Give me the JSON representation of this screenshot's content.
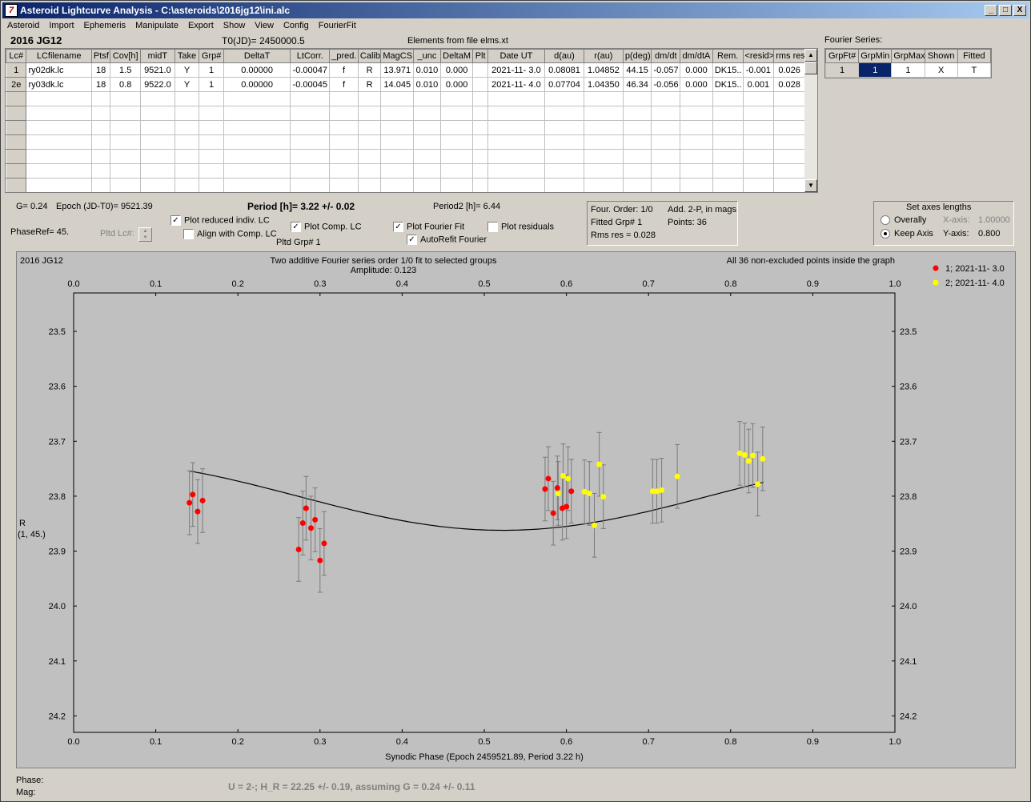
{
  "window": {
    "title": "Asteroid Lightcurve Analysis - C:\\asteroids\\2016jg12\\ini.alc",
    "controls": [
      "_",
      "□",
      "X"
    ]
  },
  "menu": [
    "Asteroid",
    "Import",
    "Ephemeris",
    "Manipulate",
    "Export",
    "Show",
    "View",
    "Config",
    "FourierFit"
  ],
  "header": {
    "asteroid": "2016 JG12",
    "t0": "T0(JD)= 2450000.5",
    "elements": "Elements from file elms.xt"
  },
  "lc_table": {
    "columns": [
      "Lc#",
      "LCfilename",
      "Ptsf",
      "Cov[h]",
      "midT",
      "Take",
      "Grp#",
      "DeltaT",
      "LtCorr.",
      "_pred.",
      "Calib.",
      "MagCS",
      "_unc",
      "DeltaM",
      "Plt",
      "Date UT",
      "d(au)",
      "r(au)",
      "p(deg)",
      "dm/dt",
      "dm/dtA",
      "Rem.",
      "<resid>",
      "rms res"
    ],
    "rows": [
      [
        "1",
        "ry02dk.lc",
        "18",
        "1.5",
        "9521.0",
        "Y",
        "1",
        "0.00000",
        "-0.00047",
        "f",
        "R",
        "13.971",
        "0.010",
        "0.000",
        "",
        "2021-11- 3.0",
        "0.08081",
        "1.04852",
        "44.15",
        "-0.057",
        "0.000",
        "DK15..",
        "-0.001",
        "0.026"
      ],
      [
        "2e",
        "ry03dk.lc",
        "18",
        "0.8",
        "9522.0",
        "Y",
        "1",
        "0.00000",
        "-0.00045",
        "f",
        "R",
        "14.045",
        "0.010",
        "0.000",
        "",
        "2021-11- 4.0",
        "0.07704",
        "1.04350",
        "46.34",
        "-0.056",
        "0.000",
        "DK15..",
        "0.001",
        "0.028"
      ]
    ],
    "empty_rows": 7
  },
  "fourier_series": {
    "title": "Fourier Series:",
    "columns": [
      "GrpFt#",
      "GrpMin",
      "GrpMax",
      "Shown",
      "Fitted"
    ],
    "row": [
      "1",
      "1",
      "1",
      "X",
      "T"
    ]
  },
  "info": {
    "g": "G= 0.24",
    "epoch": "Epoch (JD-T0)= 9521.39",
    "period": "Period [h]= 3.22 +/- 0.02",
    "period2": "Period2 [h]= 6.44",
    "phaseref": "PhaseRef= 45.",
    "pltd_lc": "Pltd Lc#:",
    "pltd_grp": "Pltd Grp#  1"
  },
  "options": {
    "plot_reduced": {
      "label": "Plot reduced indiv. LC",
      "checked": true
    },
    "align_comp": {
      "label": "Align with Comp. LC",
      "checked": false
    },
    "plot_comp": {
      "label": "Plot Comp. LC",
      "checked": true
    },
    "plot_fourier": {
      "label": "Plot Fourier Fit",
      "checked": true
    },
    "autorefit": {
      "label": "AutoRefit Fourier",
      "checked": true
    },
    "plot_residuals": {
      "label": "Plot residuals",
      "checked": false
    }
  },
  "fit_info": {
    "order": "Four. Order:  1/0",
    "add": "Add. 2-P, in mags",
    "fitted": "Fitted Grp# 1",
    "points": "Points: 36",
    "rms": "Rms res     = 0.028"
  },
  "axes": {
    "title": "Set axes lengths",
    "overally": "Overally",
    "keep": "Keep Axis",
    "xaxis_label": "X-axis:",
    "xaxis_value": "1.00000",
    "yaxis_label": "Y-axis:",
    "yaxis_value": "0.800"
  },
  "status": {
    "phase": "Phase:",
    "mag": "Mag:",
    "result": "U = 2-; H_R = 22.25 +/- 0.19, assuming G = 0.24 +/- 0.11"
  },
  "chart_data": {
    "type": "scatter",
    "title": "Two additive Fourier series order 1/0 fit to selected groups",
    "subtitle": "Amplitude: 0.123",
    "corner_left": "2016 JG12",
    "corner_right": "All 36 non-excluded points inside the graph",
    "xlabel": "Synodic Phase (Epoch 2459521.89, Period 3.22 h)",
    "ylabel": [
      "R",
      "(1, 45.)"
    ],
    "xlim": [
      0,
      1
    ],
    "ylim": [
      23.43,
      24.23
    ],
    "xticks": [
      "0.0",
      "0.1",
      "0.2",
      "0.3",
      "0.4",
      "0.5",
      "0.6",
      "0.7",
      "0.8",
      "0.9",
      "1.0"
    ],
    "yticks": [
      "23.5",
      "23.6",
      "23.7",
      "23.8",
      "23.9",
      "24.0",
      "24.1",
      "24.2"
    ],
    "fit_curve": {
      "mean": 23.8,
      "a": -0.0615,
      "b": -0.0089,
      "xrange": [
        0.14,
        0.84
      ]
    },
    "series": [
      {
        "name": "1; 2021-11- 3.0",
        "color": "#ff0000",
        "points": [
          [
            0.141,
            23.812
          ],
          [
            0.145,
            23.797
          ],
          [
            0.151,
            23.828
          ],
          [
            0.157,
            23.808
          ],
          [
            0.274,
            23.897
          ],
          [
            0.279,
            23.849
          ],
          [
            0.283,
            23.822
          ],
          [
            0.289,
            23.858
          ],
          [
            0.294,
            23.843
          ],
          [
            0.3,
            23.917
          ],
          [
            0.305,
            23.886
          ],
          [
            0.574,
            23.787
          ],
          [
            0.578,
            23.768
          ],
          [
            0.584,
            23.831
          ],
          [
            0.589,
            23.785
          ],
          [
            0.595,
            23.822
          ],
          [
            0.6,
            23.819
          ],
          [
            0.606,
            23.791
          ]
        ]
      },
      {
        "name": "2; 2021-11- 4.0",
        "color": "#ffff00",
        "points": [
          [
            0.59,
            23.795
          ],
          [
            0.596,
            23.763
          ],
          [
            0.602,
            23.768
          ],
          [
            0.622,
            23.792
          ],
          [
            0.628,
            23.795
          ],
          [
            0.634,
            23.853
          ],
          [
            0.64,
            23.742
          ],
          [
            0.645,
            23.801
          ],
          [
            0.705,
            23.791
          ],
          [
            0.71,
            23.791
          ],
          [
            0.716,
            23.789
          ],
          [
            0.735,
            23.764
          ],
          [
            0.811,
            23.722
          ],
          [
            0.817,
            23.725
          ],
          [
            0.822,
            23.736
          ],
          [
            0.827,
            23.726
          ],
          [
            0.833,
            23.778
          ],
          [
            0.839,
            23.732
          ]
        ]
      }
    ],
    "error": 0.058,
    "legend_placement": "right"
  }
}
